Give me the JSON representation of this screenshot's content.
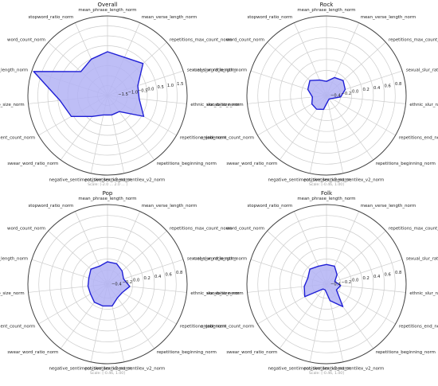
{
  "categories": [
    "mean_phrase_length_norm",
    "mean_verse_length_norm",
    "repetitions_max_count_norm",
    "sexual_slur_ratio_norm",
    "ethnic_slur_ratio_norm",
    "repetitions_end_norm",
    "repetitions_beginning_norm",
    "positive_sentiment_sentilex_v2_norm",
    "negative_sentiment_sentilex_v2_norm",
    "swear_word_ratio_norm",
    "enjabement_count_norm",
    "vocab_size_norm",
    "mean_word_length_norm",
    "word_count_norm",
    "stopword_ratio_norm"
  ],
  "colors": {
    "fill": "#b3b3f5",
    "line": "#1f1fd6",
    "grid": "#cccccc",
    "frame": "#444444"
  },
  "chart_data": [
    {
      "type": "radar",
      "title": "Overall",
      "scale_note": "Scale: [-2.0 ... 2.0 ... ]",
      "rlim": [
        -2.0,
        2.0
      ],
      "ticks": [
        -1.5,
        -1.0,
        -0.5,
        0.0,
        0.5,
        1.0,
        1.5
      ],
      "tick_labels": [
        "−1.5",
        "−1.0",
        "−0.5",
        "0.0",
        "0.5",
        "1.0",
        "1.5"
      ],
      "values": [
        0.2,
        0.1,
        0.4,
        -0.4,
        -0.4,
        0.1,
        -1.0,
        -1.0,
        -1.0,
        -0.7,
        0.1,
        0.4,
        1.9,
        -0.2,
        0.0
      ]
    },
    {
      "type": "radar",
      "title": "Rock",
      "scale_note": "Scale: [-0.46, 1.00]",
      "rlim": [
        -0.46,
        1.0
      ],
      "ticks": [
        -0.4,
        -0.2,
        0.0,
        0.2,
        0.4,
        0.6,
        0.8
      ],
      "tick_labels": [
        "−0.4",
        "−0.2",
        "0.0",
        "0.2",
        "0.4",
        "0.6",
        "0.8"
      ],
      "values": [
        -0.2,
        -0.1,
        -0.05,
        -0.1,
        -0.2,
        -0.35,
        -0.38,
        -0.35,
        -0.2,
        -0.15,
        -0.15,
        -0.2,
        -0.1,
        -0.05,
        -0.15
      ]
    },
    {
      "type": "radar",
      "title": "Pop",
      "scale_note": "Scale: [-0.46, 1.00]",
      "rlim": [
        -0.46,
        1.0
      ],
      "ticks": [
        -0.4,
        -0.2,
        0.0,
        0.2,
        0.4,
        0.6,
        0.8
      ],
      "tick_labels": [
        "−0.4",
        "−0.2",
        "0.0",
        "0.2",
        "0.4",
        "0.6",
        "0.8"
      ],
      "values": [
        -0.05,
        -0.05,
        -0.1,
        -0.15,
        -0.05,
        -0.15,
        -0.15,
        -0.05,
        -0.05,
        -0.05,
        -0.1,
        -0.1,
        -0.1,
        -0.05,
        -0.1
      ]
    },
    {
      "type": "radar",
      "title": "Folk",
      "scale_note": "Scale: [-0.46, 1.00]",
      "rlim": [
        -0.46,
        1.0
      ],
      "ticks": [
        -0.4,
        -0.2,
        0.0,
        0.2,
        0.4,
        0.6,
        0.8
      ],
      "tick_labels": [
        "−0.4",
        "−0.2",
        "0.0",
        "0.2",
        "0.4",
        "0.6",
        "0.8"
      ],
      "values": [
        -0.1,
        -0.1,
        -0.2,
        -0.3,
        -0.2,
        -0.25,
        0.05,
        -0.15,
        -0.35,
        -0.35,
        0.0,
        -0.05,
        -0.1,
        -0.05,
        -0.1
      ]
    }
  ]
}
